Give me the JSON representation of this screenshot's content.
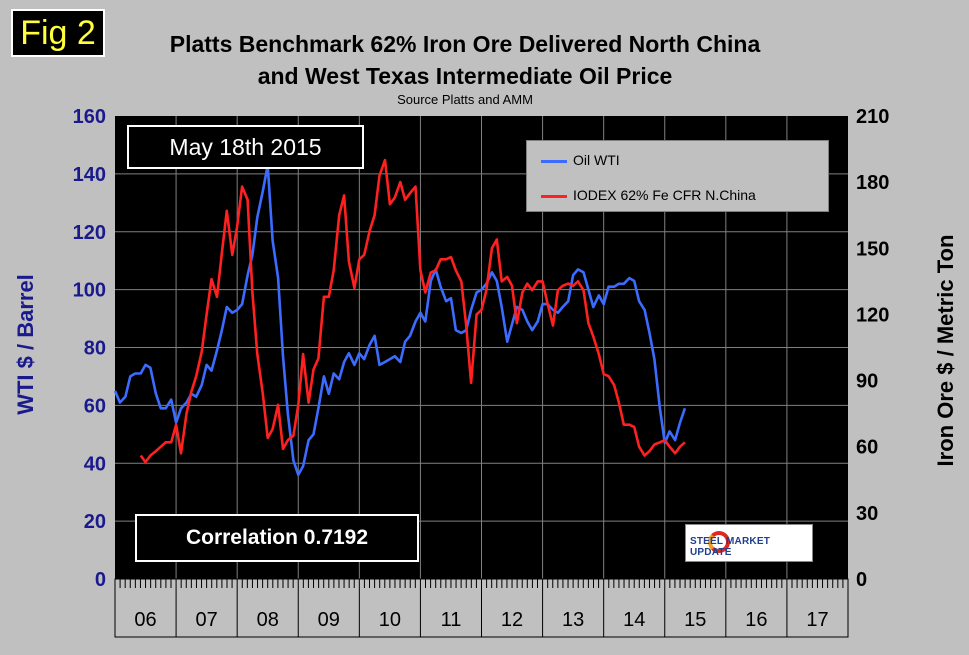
{
  "fig_label": "Fig 2",
  "title_line1": "Platts Benchmark 62% Iron Ore Delivered North China",
  "title_line2": "and West Texas Intermediate Oil Price",
  "subtitle": "Source Platts and AMM",
  "date_label": "May 18th 2015",
  "correlation_label": "Correlation 0.7192",
  "logo_text": "STEEL MARKET UPDATE",
  "colors": {
    "background": "#c0c0c0",
    "plot_background": "#000000",
    "grid": "#808080",
    "oil": "#3c6cff",
    "iron": "#ff2020",
    "left_axis_text": "#1a1a8c",
    "right_axis_text": "#000000"
  },
  "chart_data": {
    "type": "line",
    "title": "Platts Benchmark 62% Iron Ore Delivered North China and West Texas Intermediate Oil Price",
    "subtitle": "Source Platts and AMM",
    "ylabel_left": "WTI $ / Barrel",
    "ylabel_right": "Iron Ore $ / Metric Ton",
    "ylim_left": [
      0,
      160
    ],
    "ylim_right": [
      0,
      210
    ],
    "yticks_left": [
      "0",
      "20",
      "40",
      "60",
      "80",
      "100",
      "120",
      "140",
      "160"
    ],
    "yticks_right": [
      "0",
      "30",
      "60",
      "90",
      "120",
      "150",
      "180",
      "210"
    ],
    "xlim": [
      2006.0,
      2018.0
    ],
    "categories": [
      "06",
      "07",
      "08",
      "09",
      "10",
      "11",
      "12",
      "13",
      "14",
      "15",
      "16",
      "17"
    ],
    "legend_position": "top-right",
    "grid": true,
    "series": [
      {
        "name": "Oil WTI",
        "axis": "left",
        "color": "#3c6cff",
        "x": [
          2006.0,
          2006.08,
          2006.17,
          2006.25,
          2006.33,
          2006.42,
          2006.5,
          2006.58,
          2006.67,
          2006.75,
          2006.83,
          2006.92,
          2007.0,
          2007.08,
          2007.17,
          2007.25,
          2007.33,
          2007.42,
          2007.5,
          2007.58,
          2007.67,
          2007.75,
          2007.83,
          2007.92,
          2008.0,
          2008.08,
          2008.17,
          2008.25,
          2008.33,
          2008.42,
          2008.5,
          2008.58,
          2008.67,
          2008.75,
          2008.83,
          2008.92,
          2009.0,
          2009.08,
          2009.17,
          2009.25,
          2009.33,
          2009.42,
          2009.5,
          2009.58,
          2009.67,
          2009.75,
          2009.83,
          2009.92,
          2010.0,
          2010.08,
          2010.17,
          2010.25,
          2010.33,
          2010.42,
          2010.5,
          2010.58,
          2010.67,
          2010.75,
          2010.83,
          2010.92,
          2011.0,
          2011.08,
          2011.17,
          2011.25,
          2011.33,
          2011.42,
          2011.5,
          2011.58,
          2011.67,
          2011.75,
          2011.83,
          2011.92,
          2012.0,
          2012.08,
          2012.17,
          2012.25,
          2012.33,
          2012.42,
          2012.5,
          2012.58,
          2012.67,
          2012.75,
          2012.83,
          2012.92,
          2013.0,
          2013.08,
          2013.17,
          2013.25,
          2013.33,
          2013.42,
          2013.5,
          2013.58,
          2013.67,
          2013.75,
          2013.83,
          2013.92,
          2014.0,
          2014.08,
          2014.17,
          2014.25,
          2014.33,
          2014.42,
          2014.5,
          2014.58,
          2014.67,
          2014.75,
          2014.83,
          2014.92,
          2015.0,
          2015.08,
          2015.17,
          2015.25,
          2015.33
        ],
        "values": [
          65,
          61,
          63,
          70,
          71,
          71,
          74,
          73,
          64,
          59,
          59,
          62,
          54,
          59,
          61,
          64,
          63,
          67,
          74,
          72,
          79,
          86,
          94,
          92,
          93,
          95,
          105,
          112,
          125,
          134,
          143,
          117,
          104,
          77,
          57,
          41,
          36,
          39,
          48,
          50,
          59,
          70,
          64,
          71,
          69,
          75,
          78,
          74,
          78,
          76,
          81,
          84,
          74,
          75,
          76,
          77,
          75,
          82,
          84,
          89,
          92,
          89,
          103,
          107,
          101,
          96,
          97,
          86,
          85,
          86,
          93,
          99,
          100,
          102,
          106,
          103,
          94,
          82,
          88,
          94,
          93,
          89,
          86,
          89,
          95,
          95,
          93,
          92,
          94,
          96,
          105,
          107,
          106,
          100,
          94,
          98,
          95,
          101,
          101,
          102,
          102,
          104,
          103,
          96,
          93,
          85,
          76,
          59,
          47,
          51,
          48,
          54,
          59
        ]
      },
      {
        "name": "IODEX 62% Fe CFR N.China",
        "axis": "right",
        "color": "#ff2020",
        "x": [
          2006.42,
          2006.5,
          2006.58,
          2006.67,
          2006.75,
          2006.83,
          2006.92,
          2007.0,
          2007.08,
          2007.17,
          2007.25,
          2007.33,
          2007.42,
          2007.5,
          2007.58,
          2007.67,
          2007.75,
          2007.83,
          2007.92,
          2008.0,
          2008.08,
          2008.17,
          2008.25,
          2008.33,
          2008.42,
          2008.5,
          2008.58,
          2008.67,
          2008.75,
          2008.83,
          2008.92,
          2009.0,
          2009.08,
          2009.17,
          2009.25,
          2009.33,
          2009.42,
          2009.5,
          2009.58,
          2009.67,
          2009.75,
          2009.83,
          2009.92,
          2010.0,
          2010.08,
          2010.17,
          2010.25,
          2010.33,
          2010.42,
          2010.5,
          2010.58,
          2010.67,
          2010.75,
          2010.83,
          2010.92,
          2011.0,
          2011.08,
          2011.17,
          2011.25,
          2011.33,
          2011.42,
          2011.5,
          2011.58,
          2011.67,
          2011.75,
          2011.83,
          2011.92,
          2012.0,
          2012.08,
          2012.17,
          2012.25,
          2012.33,
          2012.42,
          2012.5,
          2012.58,
          2012.67,
          2012.75,
          2012.83,
          2012.92,
          2013.0,
          2013.08,
          2013.17,
          2013.25,
          2013.33,
          2013.42,
          2013.5,
          2013.58,
          2013.67,
          2013.75,
          2013.83,
          2013.92,
          2014.0,
          2014.08,
          2014.17,
          2014.25,
          2014.33,
          2014.42,
          2014.5,
          2014.58,
          2014.67,
          2014.75,
          2014.83,
          2014.92,
          2015.0,
          2015.08,
          2015.17,
          2015.25,
          2015.33
        ],
        "values": [
          56,
          53,
          56,
          58,
          60,
          62,
          62,
          70,
          57,
          75,
          85,
          92,
          103,
          120,
          136,
          128,
          148,
          167,
          147,
          160,
          178,
          172,
          130,
          102,
          84,
          64,
          68,
          79,
          59,
          63,
          65,
          79,
          102,
          80,
          95,
          100,
          128,
          128,
          140,
          165,
          174,
          144,
          132,
          145,
          147,
          158,
          165,
          183,
          190,
          170,
          173,
          180,
          172,
          175,
          178,
          140,
          130,
          139,
          140,
          145,
          145,
          146,
          140,
          135,
          115,
          89,
          120,
          122,
          131,
          150,
          154,
          135,
          137,
          133,
          116,
          130,
          134,
          131,
          135,
          135,
          125,
          115,
          131,
          133,
          134,
          133,
          135,
          131,
          116,
          110,
          102,
          93,
          92,
          88,
          80,
          70,
          70,
          69,
          60,
          56,
          58,
          61,
          62,
          63,
          60,
          57,
          60,
          62
        ]
      }
    ]
  }
}
